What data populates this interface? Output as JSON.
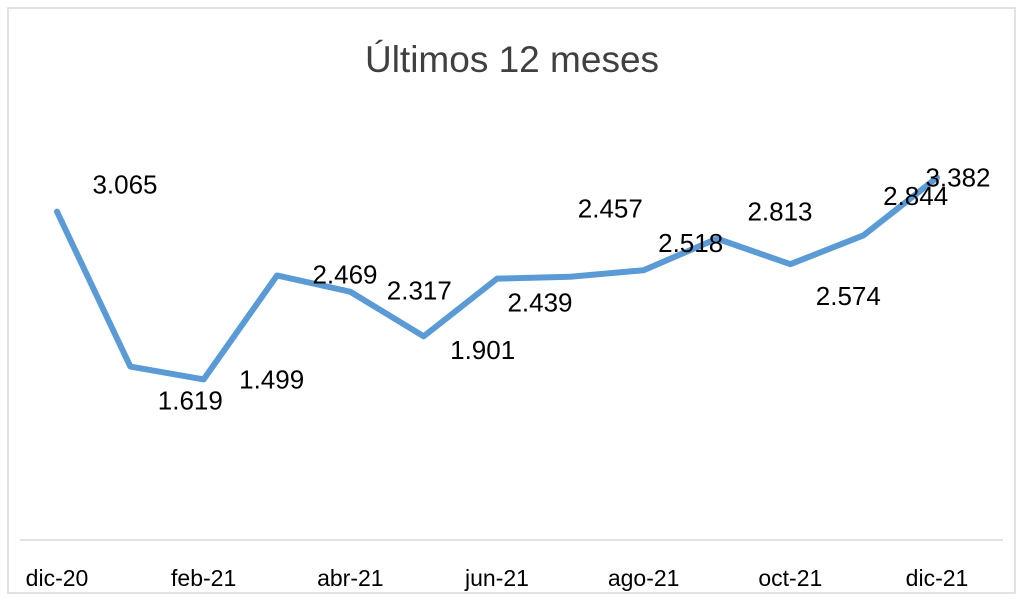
{
  "chart_data": {
    "type": "line",
    "title": "Últimos 12 meses",
    "categories": [
      "dic-20",
      null,
      "feb-21",
      null,
      "abr-21",
      null,
      "jun-21",
      null,
      "ago-21",
      null,
      "oct-21",
      null,
      "dic-21"
    ],
    "values": [
      3.065,
      1.619,
      1.499,
      2.469,
      2.317,
      1.901,
      2.439,
      2.457,
      2.518,
      2.813,
      2.574,
      2.844,
      3.382
    ],
    "color": "#5b9bd5",
    "ylim": [
      0,
      3.5
    ]
  }
}
